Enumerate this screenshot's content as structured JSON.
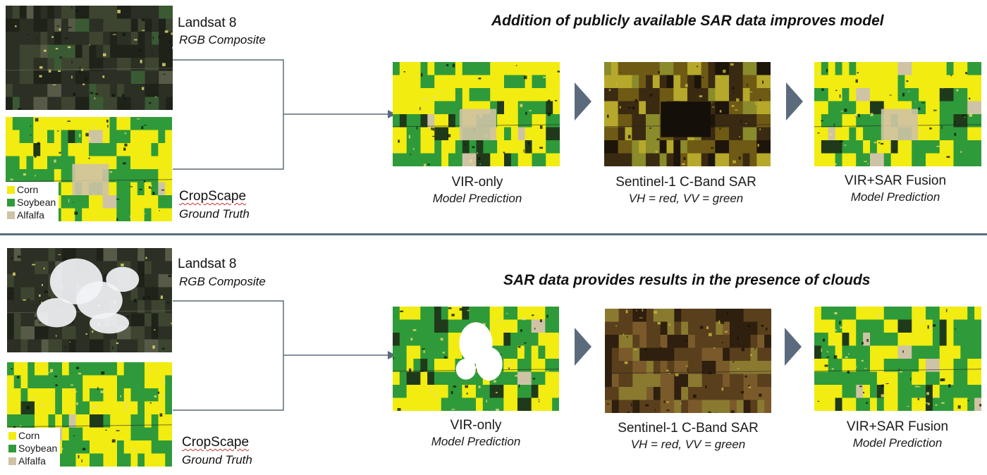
{
  "colors": {
    "corn": "#f2ec10",
    "soybean": "#2f9a3a",
    "alfalfa": "#cfc3a6",
    "arrow": "#5b6b7d",
    "divider": "#5a6f80"
  },
  "sections": [
    {
      "title": "Addition of publicly available SAR data improves model",
      "landsat": {
        "name": "Landsat 8",
        "sub": "RGB Composite"
      },
      "cropscape": {
        "name": "CropScape",
        "sub": "Ground Truth"
      },
      "legend": [
        "Corn",
        "Soybean",
        "Alfalfa"
      ],
      "panels": [
        {
          "name": "VIR-only",
          "sub": "Model Prediction"
        },
        {
          "name": "Sentinel-1 C-Band SAR",
          "sub": "VH = red, VV = green"
        },
        {
          "name": "VIR+SAR Fusion",
          "sub": "Model Prediction"
        }
      ]
    },
    {
      "title": "SAR data provides results in the presence of clouds",
      "landsat": {
        "name": "Landsat 8",
        "sub": "RGB Composite"
      },
      "cropscape": {
        "name": "CropScape",
        "sub": "Ground Truth"
      },
      "legend": [
        "Corn",
        "Soybean",
        "Alfalfa"
      ],
      "panels": [
        {
          "name": "VIR-only",
          "sub": "Model Prediction"
        },
        {
          "name": "Sentinel-1 C-Band SAR",
          "sub": "VH = red, VV = green"
        },
        {
          "name": "VIR+SAR Fusion",
          "sub": "Model Prediction"
        }
      ]
    }
  ]
}
